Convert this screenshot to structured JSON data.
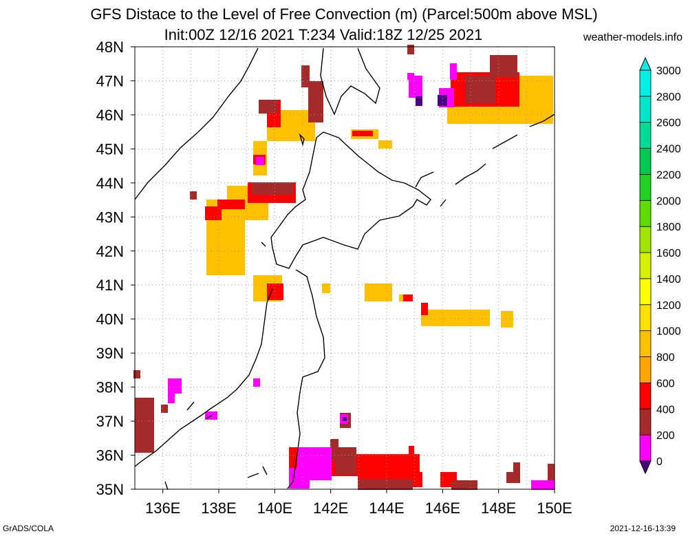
{
  "header": {
    "title_line1": "GFS Distace to the Level of Free Convection (m) (Parcel:500m above MSL)",
    "title_line2": "Init:00Z 12/16 2021 T:234 Valid:18Z 12/25 2021",
    "site": "weather-models.info"
  },
  "footer": {
    "left": "GrADS/COLA",
    "right": "2021-12-16-13:39"
  },
  "map": {
    "lon_range": [
      135,
      150
    ],
    "lat_range": [
      35,
      48
    ],
    "lat_labels": [
      "35N",
      "36N",
      "37N",
      "38N",
      "39N",
      "40N",
      "41N",
      "42N",
      "43N",
      "44N",
      "45N",
      "46N",
      "47N",
      "48N"
    ],
    "lon_labels": [
      "136E",
      "138E",
      "140E",
      "142E",
      "144E",
      "146E",
      "148E",
      "150E"
    ],
    "colors": {
      "coast": "#000000",
      "grid": "#999999",
      "band_0_200": "#4b0082",
      "band_200_400": "#ff00ff",
      "band_400_600": "#a52a2a",
      "band_600_800": "#ff0000",
      "band_800_1000": "#ffa500",
      "band_1000_1200": "#ffc000"
    }
  },
  "colorbar": {
    "labels": [
      "0",
      "200",
      "400",
      "600",
      "800",
      "1000",
      "1200",
      "1400",
      "1600",
      "1800",
      "2000",
      "2200",
      "2400",
      "2600",
      "2800",
      "3000"
    ],
    "colors": [
      "#4b0082",
      "#ff00ff",
      "#a52a2a",
      "#ff0000",
      "#ffa500",
      "#ffc000",
      "#ffe000",
      "#ffff00",
      "#d4f000",
      "#a0e600",
      "#60dc00",
      "#20d220",
      "#00c850",
      "#00dc96",
      "#00e6c8",
      "#00f0e8"
    ]
  }
}
